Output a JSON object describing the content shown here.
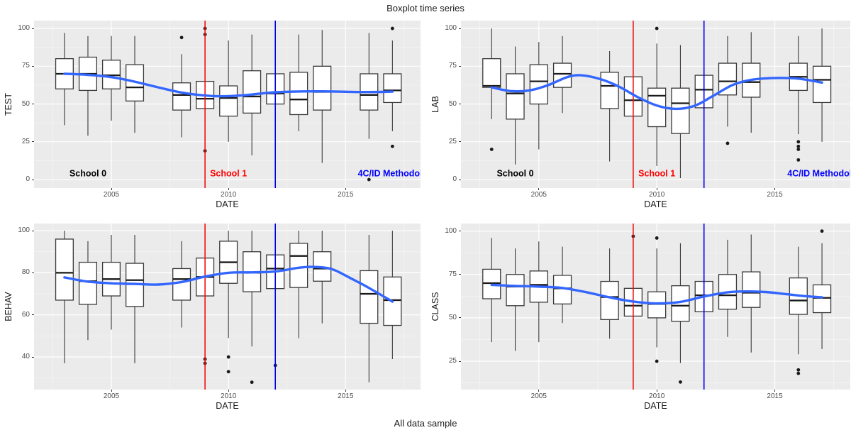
{
  "title": "Boxplot time series",
  "caption": "All data sample",
  "axis": {
    "x_title": "DATE"
  },
  "colors": {
    "panel_bg": "#EBEBEB",
    "grid_major": "#FFFFFF",
    "grid_minor": "#FFFFFF",
    "box_stroke": "#3A3A3A",
    "box_fill": "#FFFFFF",
    "median_stroke": "#1A1A1A",
    "outlier": "#1A1A1A",
    "smooth_line": "#3366FF",
    "vline_red": "#EE1111",
    "vline_blue": "#0000EE",
    "tick_text": "#4D4D4D",
    "axis_title_text": "#1A1A1A"
  },
  "chart_data": [
    {
      "type": "boxplot-timeseries",
      "panel": "top-left",
      "ylabel": "TEST",
      "xlabel": "DATE",
      "x_ticks": [
        2005,
        2010,
        2015
      ],
      "y_ticks": [
        0,
        25,
        50,
        75,
        100
      ],
      "xlim": [
        2001.7,
        2018.2
      ],
      "ylim": [
        -5.6,
        105.2
      ],
      "boxes": [
        {
          "year": 2003,
          "lo": 36,
          "q1": 60,
          "med": 70,
          "q3": 80,
          "hi": 97,
          "out": []
        },
        {
          "year": 2004,
          "lo": 29,
          "q1": 59,
          "med": 70,
          "q3": 81,
          "hi": 95,
          "out": []
        },
        {
          "year": 2005,
          "lo": 39,
          "q1": 60,
          "med": 69,
          "q3": 79,
          "hi": 95,
          "out": []
        },
        {
          "year": 2006,
          "lo": 31,
          "q1": 52,
          "med": 61,
          "q3": 76,
          "hi": 95,
          "out": []
        },
        {
          "year": 2008,
          "lo": 28,
          "q1": 46,
          "med": 56,
          "q3": 64,
          "hi": 83,
          "out": [
            94
          ]
        },
        {
          "year": 2009,
          "lo": 47,
          "q1": 47,
          "med": 53.5,
          "q3": 65,
          "hi": 65,
          "out": [
            100,
            96,
            19
          ]
        },
        {
          "year": 2010,
          "lo": 25,
          "q1": 42,
          "med": 54,
          "q3": 62,
          "hi": 92,
          "out": []
        },
        {
          "year": 2011,
          "lo": 16,
          "q1": 44,
          "med": 55,
          "q3": 72,
          "hi": 96,
          "out": []
        },
        {
          "year": 2012,
          "lo": 50,
          "q1": 50,
          "med": 57,
          "q3": 70,
          "hi": 70,
          "out": []
        },
        {
          "year": 2013,
          "lo": 32,
          "q1": 43,
          "med": 53,
          "q3": 71,
          "hi": 96,
          "out": []
        },
        {
          "year": 2014,
          "lo": 11,
          "q1": 46,
          "med": 58,
          "q3": 75,
          "hi": 99,
          "out": []
        },
        {
          "year": 2016,
          "lo": 27,
          "q1": 46,
          "med": 56,
          "q3": 70,
          "hi": 97,
          "out": [
            0
          ]
        },
        {
          "year": 2017,
          "lo": 32,
          "q1": 51,
          "med": 59,
          "q3": 70,
          "hi": 92,
          "out": [
            100,
            22
          ]
        }
      ],
      "smooth": [
        [
          2003,
          70
        ],
        [
          2004,
          69.3
        ],
        [
          2005,
          67.8
        ],
        [
          2006,
          64.8
        ],
        [
          2007,
          61
        ],
        [
          2008,
          57.6
        ],
        [
          2009,
          55.6
        ],
        [
          2009.7,
          55.1
        ],
        [
          2010.5,
          55.6
        ],
        [
          2011.3,
          56.8
        ],
        [
          2012,
          57.8
        ],
        [
          2013,
          58.3
        ],
        [
          2014,
          58.4
        ],
        [
          2015,
          58.1
        ],
        [
          2016,
          57.9
        ],
        [
          2017,
          58.2
        ]
      ],
      "vlines": [
        {
          "x": 2009,
          "color_key": "vline_red"
        },
        {
          "x": 2012,
          "color_key": "vline_blue"
        }
      ],
      "annotations": [
        {
          "x": 2004,
          "y": 4,
          "text": "School 0",
          "color": "#000000"
        },
        {
          "x": 2010,
          "y": 4,
          "text": "School 1",
          "color": "#FF0000"
        },
        {
          "x": 2016.9,
          "y": 4,
          "text": "4C/ID Methodol",
          "color": "#0000FF"
        }
      ]
    },
    {
      "type": "boxplot-timeseries",
      "panel": "top-right",
      "ylabel": "LAB",
      "xlabel": "DATE",
      "x_ticks": [
        2005,
        2010,
        2015
      ],
      "y_ticks": [
        0,
        25,
        50,
        75,
        100
      ],
      "xlim": [
        2001.7,
        2018.2
      ],
      "ylim": [
        -5.6,
        105.2
      ],
      "boxes": [
        {
          "year": 2003,
          "lo": 40,
          "q1": 61,
          "med": 62,
          "q3": 80,
          "hi": 100,
          "out": [
            20
          ]
        },
        {
          "year": 2004,
          "lo": 10,
          "q1": 40,
          "med": 57,
          "q3": 70,
          "hi": 88,
          "out": []
        },
        {
          "year": 2005,
          "lo": 20,
          "q1": 50,
          "med": 65,
          "q3": 76,
          "hi": 91,
          "out": []
        },
        {
          "year": 2006,
          "lo": 44,
          "q1": 61,
          "med": 70,
          "q3": 77,
          "hi": 95,
          "out": []
        },
        {
          "year": 2008,
          "lo": 12,
          "q1": 47,
          "med": 62,
          "q3": 71,
          "hi": 85,
          "out": []
        },
        {
          "year": 2009,
          "lo": 42,
          "q1": 42,
          "med": 52.5,
          "q3": 68,
          "hi": 68,
          "out": []
        },
        {
          "year": 2010,
          "lo": 9,
          "q1": 35,
          "med": 55.5,
          "q3": 60.5,
          "hi": 90,
          "out": [
            100
          ]
        },
        {
          "year": 2011,
          "lo": 1,
          "q1": 30.5,
          "med": 50.5,
          "q3": 60.5,
          "hi": 89,
          "out": []
        },
        {
          "year": 2012,
          "lo": 47.5,
          "q1": 47.5,
          "med": 59.5,
          "q3": 69,
          "hi": 69,
          "out": []
        },
        {
          "year": 2013,
          "lo": 35,
          "q1": 56,
          "med": 65,
          "q3": 77,
          "hi": 95,
          "out": [
            24
          ]
        },
        {
          "year": 2014,
          "lo": 31,
          "q1": 54.5,
          "med": 64.5,
          "q3": 77,
          "hi": 97.5,
          "out": []
        },
        {
          "year": 2016,
          "lo": 30,
          "q1": 59,
          "med": 68,
          "q3": 77,
          "hi": 95,
          "out": [
            25,
            22,
            20,
            13
          ]
        },
        {
          "year": 2017,
          "lo": 25,
          "q1": 51,
          "med": 66,
          "q3": 75,
          "hi": 100,
          "out": []
        }
      ],
      "smooth": [
        [
          2003,
          61
        ],
        [
          2003.8,
          58.6
        ],
        [
          2004.6,
          59
        ],
        [
          2005.4,
          62.5
        ],
        [
          2006.2,
          67.8
        ],
        [
          2006.8,
          69
        ],
        [
          2007.6,
          66.5
        ],
        [
          2008.4,
          61.5
        ],
        [
          2009.2,
          54.5
        ],
        [
          2010,
          49
        ],
        [
          2010.8,
          46.8
        ],
        [
          2011.6,
          48.8
        ],
        [
          2012.4,
          55.5
        ],
        [
          2013.2,
          62.5
        ],
        [
          2014,
          66
        ],
        [
          2015,
          67.2
        ],
        [
          2016,
          66.8
        ],
        [
          2017,
          64.2
        ]
      ],
      "vlines": [
        {
          "x": 2009,
          "color_key": "vline_red"
        },
        {
          "x": 2012,
          "color_key": "vline_blue"
        }
      ],
      "annotations": [
        {
          "x": 2004,
          "y": 4,
          "text": "School 0",
          "color": "#000000"
        },
        {
          "x": 2010,
          "y": 4,
          "text": "School 1",
          "color": "#FF0000"
        },
        {
          "x": 2016.9,
          "y": 4,
          "text": "4C/ID Methodol",
          "color": "#0000FF"
        }
      ]
    },
    {
      "type": "boxplot-timeseries",
      "panel": "bottom-left",
      "ylabel": "BEHAV",
      "xlabel": "DATE",
      "x_ticks": [
        2005,
        2010,
        2015
      ],
      "y_ticks": [
        40,
        60,
        80,
        100
      ],
      "xlim": [
        2001.7,
        2018.2
      ],
      "ylim": [
        24.5,
        103.4
      ],
      "boxes": [
        {
          "year": 2003,
          "lo": 37,
          "q1": 67,
          "med": 80,
          "q3": 96,
          "hi": 100,
          "out": []
        },
        {
          "year": 2004,
          "lo": 48,
          "q1": 65,
          "med": 76,
          "q3": 85,
          "hi": 95,
          "out": []
        },
        {
          "year": 2005,
          "lo": 53,
          "q1": 69,
          "med": 77,
          "q3": 85,
          "hi": 98,
          "out": []
        },
        {
          "year": 2006,
          "lo": 37,
          "q1": 64,
          "med": 76.5,
          "q3": 84.5,
          "hi": 98,
          "out": []
        },
        {
          "year": 2008,
          "lo": 54,
          "q1": 67,
          "med": 77,
          "q3": 82,
          "hi": 95,
          "out": []
        },
        {
          "year": 2009,
          "lo": 69,
          "q1": 69,
          "med": 78,
          "q3": 87,
          "hi": 87,
          "out": [
            39,
            37
          ]
        },
        {
          "year": 2010,
          "lo": 49,
          "q1": 75,
          "med": 85,
          "q3": 95,
          "hi": 100,
          "out": [
            40,
            33
          ]
        },
        {
          "year": 2011,
          "lo": 45,
          "q1": 71,
          "med": 80,
          "q3": 90,
          "hi": 100,
          "out": [
            28
          ]
        },
        {
          "year": 2012,
          "lo": 72.5,
          "q1": 72.5,
          "med": 82,
          "q3": 88.5,
          "hi": 88.5,
          "out": [
            36
          ]
        },
        {
          "year": 2013,
          "lo": 49,
          "q1": 73,
          "med": 88,
          "q3": 94,
          "hi": 100,
          "out": []
        },
        {
          "year": 2014,
          "lo": 56,
          "q1": 76,
          "med": 82,
          "q3": 90,
          "hi": 100,
          "out": []
        },
        {
          "year": 2016,
          "lo": 28,
          "q1": 56,
          "med": 70,
          "q3": 81,
          "hi": 98,
          "out": []
        },
        {
          "year": 2017,
          "lo": 39,
          "q1": 55,
          "med": 67,
          "q3": 78,
          "hi": 100,
          "out": []
        }
      ],
      "smooth": [
        [
          2003,
          77.8
        ],
        [
          2004,
          75.8
        ],
        [
          2005,
          75
        ],
        [
          2006,
          74.7
        ],
        [
          2007,
          74.4
        ],
        [
          2008,
          75.6
        ],
        [
          2009,
          78.2
        ],
        [
          2010,
          80
        ],
        [
          2011,
          80.2
        ],
        [
          2012,
          80.6
        ],
        [
          2013,
          82.4
        ],
        [
          2013.6,
          82.8
        ],
        [
          2014.4,
          81.8
        ],
        [
          2015.2,
          77.5
        ],
        [
          2016,
          72.8
        ],
        [
          2017,
          66.3
        ]
      ],
      "vlines": [
        {
          "x": 2009,
          "color_key": "vline_red"
        },
        {
          "x": 2012,
          "color_key": "vline_blue"
        }
      ],
      "annotations": []
    },
    {
      "type": "boxplot-timeseries",
      "panel": "bottom-right",
      "ylabel": "CLASS",
      "xlabel": "DATE",
      "x_ticks": [
        2005,
        2010,
        2015
      ],
      "y_ticks": [
        25,
        50,
        75,
        100
      ],
      "xlim": [
        2001.7,
        2018.2
      ],
      "ylim": [
        8.65,
        104.35
      ],
      "boxes": [
        {
          "year": 2003,
          "lo": 36,
          "q1": 61,
          "med": 70,
          "q3": 78,
          "hi": 96,
          "out": []
        },
        {
          "year": 2004,
          "lo": 31,
          "q1": 57,
          "med": 68,
          "q3": 75,
          "hi": 90,
          "out": []
        },
        {
          "year": 2005,
          "lo": 36,
          "q1": 59,
          "med": 69,
          "q3": 77,
          "hi": 94,
          "out": []
        },
        {
          "year": 2006,
          "lo": 47,
          "q1": 58,
          "med": 67,
          "q3": 74.5,
          "hi": 91,
          "out": []
        },
        {
          "year": 2008,
          "lo": 38,
          "q1": 49,
          "med": 62,
          "q3": 71,
          "hi": 90,
          "out": []
        },
        {
          "year": 2009,
          "lo": 51,
          "q1": 51,
          "med": 57,
          "q3": 67,
          "hi": 67,
          "out": [
            97
          ]
        },
        {
          "year": 2010,
          "lo": 33,
          "q1": 50,
          "med": 58,
          "q3": 65,
          "hi": 90,
          "out": [
            96,
            25
          ]
        },
        {
          "year": 2011,
          "lo": 24,
          "q1": 48,
          "med": 57,
          "q3": 68.5,
          "hi": 93,
          "out": [
            13
          ]
        },
        {
          "year": 2012,
          "lo": 53.5,
          "q1": 53.5,
          "med": 63,
          "q3": 71,
          "hi": 71,
          "out": []
        },
        {
          "year": 2013,
          "lo": 39,
          "q1": 55,
          "med": 63,
          "q3": 75,
          "hi": 95,
          "out": []
        },
        {
          "year": 2014,
          "lo": 30,
          "q1": 56,
          "med": 64.5,
          "q3": 76.5,
          "hi": 98,
          "out": []
        },
        {
          "year": 2016,
          "lo": 29,
          "q1": 52,
          "med": 60,
          "q3": 73,
          "hi": 91,
          "out": [
            20,
            18
          ]
        },
        {
          "year": 2017,
          "lo": 32,
          "q1": 53,
          "med": 61.5,
          "q3": 69,
          "hi": 93,
          "out": [
            100
          ]
        }
      ],
      "smooth": [
        [
          2003,
          69
        ],
        [
          2004,
          68.4
        ],
        [
          2005,
          68
        ],
        [
          2006,
          67.2
        ],
        [
          2007,
          64.8
        ],
        [
          2008,
          61.8
        ],
        [
          2009,
          59.4
        ],
        [
          2010,
          58.3
        ],
        [
          2011,
          59.2
        ],
        [
          2012,
          62.3
        ],
        [
          2013,
          64.7
        ],
        [
          2013.8,
          65.2
        ],
        [
          2014.6,
          64.9
        ],
        [
          2015.4,
          63.8
        ],
        [
          2016.2,
          62.6
        ],
        [
          2017,
          61.8
        ]
      ],
      "vlines": [
        {
          "x": 2009,
          "color_key": "vline_red"
        },
        {
          "x": 2012,
          "color_key": "vline_blue"
        }
      ],
      "annotations": []
    }
  ]
}
